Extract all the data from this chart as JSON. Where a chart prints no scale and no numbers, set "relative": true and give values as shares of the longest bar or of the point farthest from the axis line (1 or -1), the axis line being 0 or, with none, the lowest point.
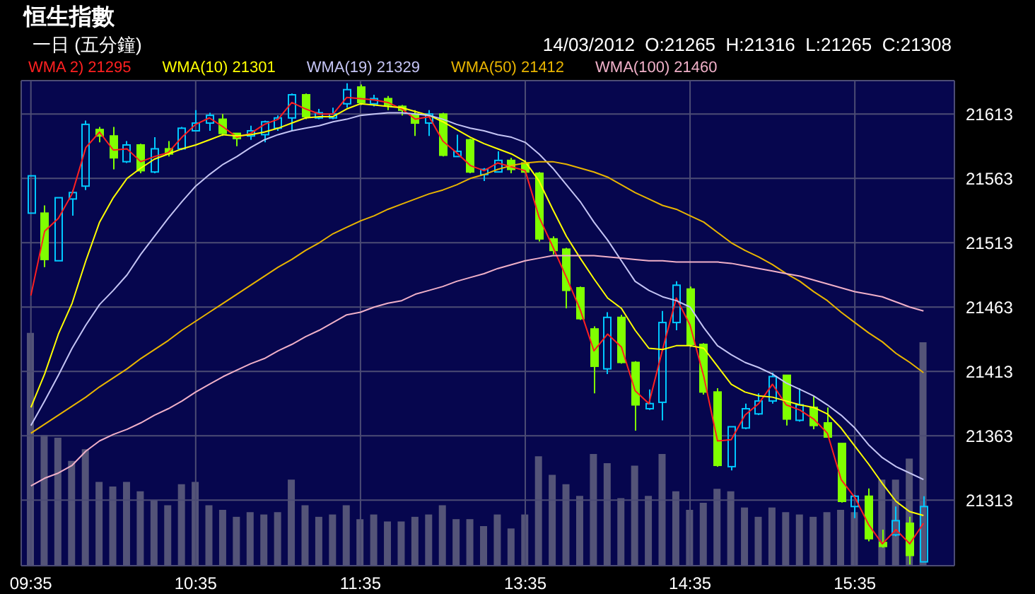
{
  "chart_data": [
    {
      "type": "candlestick",
      "title": "恒生指數",
      "subtitle": "一日 (五分鐘)",
      "annotations": [
        "14/03/2012  O:21265  H:21316  L:21265  C:21308"
      ],
      "categories": [
        "09:35",
        null,
        null,
        null,
        null,
        null,
        null,
        null,
        null,
        null,
        null,
        null,
        "10:35",
        null,
        null,
        null,
        null,
        null,
        null,
        null,
        null,
        null,
        null,
        null,
        "11:35",
        null,
        null,
        null,
        null,
        null,
        null,
        null,
        null,
        null,
        null,
        null,
        "13:35",
        null,
        null,
        null,
        null,
        null,
        null,
        null,
        null,
        null,
        null,
        null,
        "14:35",
        null,
        null,
        null,
        null,
        null,
        null,
        null,
        null,
        null,
        null,
        null,
        "15:35",
        null,
        null,
        null,
        null,
        null
      ],
      "ohlc": [
        [
          21536,
          21565,
          21536,
          21565
        ],
        [
          21536,
          21542,
          21494,
          21500
        ],
        [
          21499,
          21548,
          21499,
          21548
        ],
        [
          21547,
          21554,
          21534,
          21552
        ],
        [
          21557,
          21608,
          21554,
          21605
        ],
        [
          21601,
          21603,
          21591,
          21596
        ],
        [
          21596,
          21603,
          21570,
          21579
        ],
        [
          21576,
          21592,
          21575,
          21589
        ],
        [
          21589,
          21590,
          21567,
          21569
        ],
        [
          21568,
          21595,
          21567,
          21586
        ],
        [
          21586,
          21592,
          21580,
          21582
        ],
        [
          21586,
          21603,
          21585,
          21602
        ],
        [
          21600,
          21616,
          21600,
          21606
        ],
        [
          21606,
          21614,
          21600,
          21612
        ],
        [
          21609,
          21613,
          21596,
          21598
        ],
        [
          21598,
          21598,
          21588,
          21594
        ],
        [
          21596,
          21604,
          21593,
          21600
        ],
        [
          21597,
          21608,
          21591,
          21607
        ],
        [
          21602,
          21612,
          21600,
          21610
        ],
        [
          21610,
          21629,
          21600,
          21628
        ],
        [
          21628,
          21629,
          21609,
          21611
        ],
        [
          21610,
          21617,
          21609,
          21614
        ],
        [
          21610,
          21618,
          21609,
          21613
        ],
        [
          21621,
          21637,
          21618,
          21632
        ],
        [
          21634,
          21636,
          21620,
          21622
        ],
        [
          21621,
          21628,
          21619,
          21625
        ],
        [
          21625,
          21627,
          21616,
          21620
        ],
        [
          21619,
          21620,
          21612,
          21616
        ],
        [
          21613,
          21616,
          21596,
          21606
        ],
        [
          21606,
          21616,
          21596,
          21613
        ],
        [
          21613,
          21614,
          21580,
          21581
        ],
        [
          21580,
          21597,
          21580,
          21584
        ],
        [
          21593,
          21594,
          21567,
          21568
        ],
        [
          21566,
          21571,
          21561,
          21570
        ],
        [
          21568,
          21584,
          21568,
          21577
        ],
        [
          21577,
          21579,
          21567,
          21570
        ],
        [
          21575,
          21577,
          21567,
          21568
        ],
        [
          21567,
          21568,
          21514,
          21516
        ],
        [
          21516,
          21518,
          21504,
          21507
        ],
        [
          21508,
          21509,
          21462,
          21476
        ],
        [
          21478,
          21479,
          21453,
          21454
        ],
        [
          21446,
          21448,
          21396,
          21417
        ],
        [
          21415,
          21459,
          21411,
          21455
        ],
        [
          21455,
          21457,
          21419,
          21420
        ],
        [
          21420,
          21421,
          21367,
          21387
        ],
        [
          21384,
          21399,
          21383,
          21388
        ],
        [
          21389,
          21460,
          21375,
          21451
        ],
        [
          21451,
          21483,
          21445,
          21480
        ],
        [
          21477,
          21479,
          21432,
          21434
        ],
        [
          21434,
          21435,
          21395,
          21397
        ],
        [
          21397,
          21400,
          21339,
          21340
        ],
        [
          21339,
          21370,
          21336,
          21370
        ],
        [
          21369,
          21388,
          21368,
          21384
        ],
        [
          21380,
          21396,
          21379,
          21390
        ],
        [
          21390,
          21412,
          21388,
          21409
        ],
        [
          21410,
          21410,
          21371,
          21376
        ],
        [
          21375,
          21400,
          21374,
          21387
        ],
        [
          21385,
          21394,
          21368,
          21371
        ],
        [
          21373,
          21385,
          21362,
          21362
        ],
        [
          21357,
          21357,
          21311,
          21312
        ],
        [
          21308,
          21317,
          21299,
          21316
        ],
        [
          21316,
          21322,
          21281,
          21283
        ],
        [
          21280,
          21290,
          21276,
          21277
        ],
        [
          21286,
          21308,
          21285,
          21297
        ],
        [
          21295,
          21300,
          21263,
          21270
        ],
        [
          21265,
          21316,
          21265,
          21308
        ]
      ],
      "colors": [
        "#00c8ff",
        "#80ff00",
        "#00c8ff",
        "#00c8ff",
        "#00c8ff",
        "#80ff00",
        "#80ff00",
        "#00c8ff",
        "#80ff00",
        "#00c8ff",
        "#80ff00",
        "#00c8ff",
        "#00c8ff",
        "#00c8ff",
        "#80ff00",
        "#80ff00",
        "#00c8ff",
        "#00c8ff",
        "#00c8ff",
        "#00c8ff",
        "#80ff00",
        "#00c8ff",
        "#00c8ff",
        "#00c8ff",
        "#80ff00",
        "#00c8ff",
        "#80ff00",
        "#80ff00",
        "#80ff00",
        "#00c8ff",
        "#80ff00",
        "#00c8ff",
        "#80ff00",
        "#00c8ff",
        "#00c8ff",
        "#80ff00",
        "#80ff00",
        "#80ff00",
        "#80ff00",
        "#80ff00",
        "#80ff00",
        "#80ff00",
        "#00c8ff",
        "#80ff00",
        "#80ff00",
        "#00c8ff",
        "#00c8ff",
        "#00c8ff",
        "#80ff00",
        "#80ff00",
        "#80ff00",
        "#00c8ff",
        "#00c8ff",
        "#00c8ff",
        "#00c8ff",
        "#80ff00",
        "#00c8ff",
        "#80ff00",
        "#80ff00",
        "#80ff00",
        "#00c8ff",
        "#80ff00",
        "#80ff00",
        "#00c8ff",
        "#80ff00",
        "#00c8ff"
      ],
      "series": [
        {
          "name": "WMA 2) 21295",
          "type": "line",
          "color": "#ff2020",
          "values": [
            21472,
            21522,
            21532,
            21551,
            21587,
            21599,
            21585,
            21586,
            21576,
            21580,
            21583,
            21595,
            21605,
            21610,
            21603,
            21595,
            21598,
            21605,
            21609,
            21622,
            21617,
            21613,
            21613,
            21626,
            21625,
            21624,
            21622,
            21617,
            21609,
            21611,
            21592,
            21583,
            21573,
            21569,
            21575,
            21572,
            21569,
            21533,
            21510,
            21486,
            21461,
            21429,
            21442,
            21432,
            21398,
            21388,
            21430,
            21470,
            21449,
            21409,
            21359,
            21360,
            21379,
            21388,
            21403,
            21387,
            21383,
            21376,
            21365,
            21329,
            21315,
            21294,
            21279,
            21290,
            21279,
            21295
          ]
        },
        {
          "name": "WMA(10) 21301",
          "type": "line",
          "color": "#ffff00",
          "values": [
            21385,
            21411,
            21442,
            21466,
            21499,
            21529,
            21548,
            21563,
            21571,
            21578,
            21582,
            21586,
            21589,
            21593,
            21597,
            21596,
            21597,
            21599,
            21602,
            21606,
            21610,
            21611,
            21611,
            21617,
            21621,
            21620,
            21619,
            21618,
            21615,
            21612,
            21607,
            21601,
            21595,
            21590,
            21586,
            21582,
            21576,
            21561,
            21539,
            21518,
            21501,
            21485,
            21470,
            21462,
            21445,
            21431,
            21430,
            21433,
            21433,
            21431,
            21417,
            21403,
            21397,
            21394,
            21393,
            21390,
            21387,
            21385,
            21380,
            21369,
            21355,
            21341,
            21326,
            21312,
            21304,
            21301
          ]
        },
        {
          "name": "WMA(19) 21329",
          "type": "line",
          "color": "#c4c4f4",
          "values": [
            21371,
            21390,
            21410,
            21431,
            21449,
            21465,
            21476,
            21488,
            21504,
            21518,
            21532,
            21545,
            21557,
            21566,
            21574,
            21580,
            21587,
            21593,
            21597,
            21600,
            21602,
            21604,
            21607,
            21609,
            21612,
            21613,
            21614,
            21614,
            21613,
            21612,
            21609,
            21605,
            21602,
            21600,
            21597,
            21595,
            21591,
            21582,
            21571,
            21558,
            21545,
            21529,
            21515,
            21499,
            21483,
            21476,
            21471,
            21468,
            21463,
            21447,
            21433,
            21426,
            21420,
            21416,
            21411,
            21404,
            21399,
            21394,
            21387,
            21379,
            21369,
            21356,
            21346,
            21339,
            21334,
            21329
          ]
        },
        {
          "name": "WMA(50) 21412",
          "type": "line",
          "color": "#e8b400",
          "values": [
            21365,
            21372,
            21379,
            21386,
            21393,
            21401,
            21408,
            21415,
            21423,
            21430,
            21437,
            21445,
            21452,
            21459,
            21466,
            21473,
            21480,
            21487,
            21494,
            21500,
            21507,
            21513,
            21520,
            21525,
            21530,
            21534,
            21539,
            21543,
            21547,
            21551,
            21554,
            21558,
            21563,
            21566,
            21570,
            21573,
            21575,
            21576,
            21576,
            21574,
            21571,
            21568,
            21564,
            21558,
            21552,
            21547,
            21542,
            21539,
            21534,
            21529,
            21521,
            21513,
            21507,
            21502,
            21496,
            21489,
            21483,
            21475,
            21468,
            21459,
            21451,
            21443,
            21436,
            21427,
            21420,
            21412
          ]
        },
        {
          "name": "WMA(100) 21460",
          "type": "line",
          "color": "#f0b0c8",
          "values": [
            21324,
            21330,
            21334,
            21340,
            21351,
            21359,
            21364,
            21368,
            21373,
            21379,
            21384,
            21390,
            21397,
            21403,
            21409,
            21414,
            21419,
            21423,
            21429,
            21434,
            21440,
            21445,
            21451,
            21457,
            21459,
            21463,
            21466,
            21468,
            21473,
            21476,
            21479,
            21483,
            21486,
            21489,
            21493,
            21496,
            21499,
            21501,
            21503,
            21503,
            21503,
            21503,
            21502,
            21501,
            21500,
            21499,
            21499,
            21498,
            21498,
            21498,
            21498,
            21497,
            21495,
            21493,
            21491,
            21489,
            21487,
            21484,
            21481,
            21478,
            21475,
            21473,
            21471,
            21467,
            21463,
            21460
          ]
        }
      ],
      "ylim": [
        21262,
        21639
      ],
      "yticks": [
        21313,
        21363,
        21413,
        21463,
        21513,
        21563,
        21613
      ],
      "grid": true,
      "legend": "top left"
    },
    {
      "type": "bar",
      "relative": true,
      "color": "#545478",
      "values": [
        1,
        0.56,
        0.55,
        0.45,
        0.5,
        0.36,
        0.34,
        0.36,
        0.32,
        0.28,
        0.26,
        0.35,
        0.36,
        0.26,
        0.24,
        0.21,
        0.23,
        0.22,
        0.23,
        0.37,
        0.26,
        0.21,
        0.22,
        0.26,
        0.2,
        0.22,
        0.19,
        0.19,
        0.21,
        0.22,
        0.26,
        0.2,
        0.2,
        0.17,
        0.22,
        0.16,
        0.22,
        0.47,
        0.39,
        0.35,
        0.3,
        0.48,
        0.44,
        0.29,
        0.43,
        0.3,
        0.48,
        0.32,
        0.24,
        0.27,
        0.33,
        0.32,
        0.25,
        0.21,
        0.25,
        0.23,
        0.22,
        0.21,
        0.23,
        0.24,
        0.23,
        null,
        0.37,
        0.37,
        0.46,
        0.96
      ]
    }
  ]
}
